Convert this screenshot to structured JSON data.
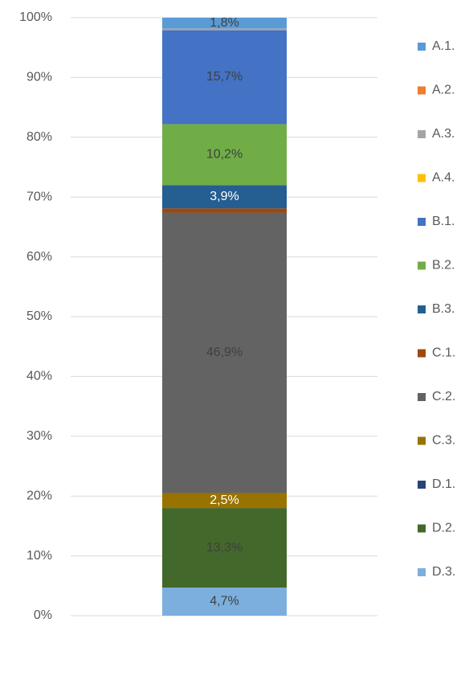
{
  "chart_data": {
    "type": "stacked_bar",
    "categories": [
      null
    ],
    "ylim": [
      0,
      100
    ],
    "yticks": [
      {
        "value": 0,
        "label": "0%"
      },
      {
        "value": 10,
        "label": "10%"
      },
      {
        "value": 20,
        "label": "20%"
      },
      {
        "value": 30,
        "label": "30%"
      },
      {
        "value": 40,
        "label": "40%"
      },
      {
        "value": 50,
        "label": "50%"
      },
      {
        "value": 60,
        "label": "60%"
      },
      {
        "value": 70,
        "label": "70%"
      },
      {
        "value": 80,
        "label": "80%"
      },
      {
        "value": 90,
        "label": "90%"
      },
      {
        "value": 100,
        "label": "100%"
      }
    ],
    "grid": true,
    "legend": "right",
    "series": [
      {
        "name": "A.1.",
        "color": "#5b9bd5",
        "values": [
          1.8
        ],
        "value_labels": [
          "1,8%"
        ],
        "label_color": "#404040"
      },
      {
        "name": "A.2.",
        "color": "#ed7d31",
        "values": [
          0
        ]
      },
      {
        "name": "A.3.",
        "color": "#a5a5a5",
        "values": [
          0.3
        ]
      },
      {
        "name": "A.4.",
        "color": "#ffc000",
        "values": [
          0
        ]
      },
      {
        "name": "B.1.",
        "color": "#4472c4",
        "values": [
          15.7
        ],
        "value_labels": [
          "15,7%"
        ],
        "label_color": "#404040"
      },
      {
        "name": "B.2.",
        "color": "#70ad47",
        "values": [
          10.2
        ],
        "value_labels": [
          "10,2%"
        ],
        "label_color": "#404040"
      },
      {
        "name": "B.3.",
        "color": "#255e91",
        "values": [
          3.9
        ],
        "value_labels": [
          "3,9%"
        ],
        "label_color": "#ffffff"
      },
      {
        "name": "C.1.",
        "color": "#9e480e",
        "values": [
          0.7
        ]
      },
      {
        "name": "C.2.",
        "color": "#636363",
        "values": [
          46.9
        ],
        "value_labels": [
          "46,9%"
        ],
        "label_color": "#404040"
      },
      {
        "name": "C.3.",
        "color": "#997300",
        "values": [
          2.5
        ],
        "value_labels": [
          "2,5%"
        ],
        "label_color": "#ffffff"
      },
      {
        "name": "D.1.",
        "color": "#264478",
        "values": [
          0
        ]
      },
      {
        "name": "D.2.",
        "color": "#43682b",
        "values": [
          13.3
        ],
        "value_labels": [
          "13,3%"
        ],
        "label_color": "#404040"
      },
      {
        "name": "D.3.",
        "color": "#7cafdd",
        "values": [
          4.7
        ],
        "value_labels": [
          "4,7%"
        ],
        "label_color": "#404040"
      }
    ]
  }
}
